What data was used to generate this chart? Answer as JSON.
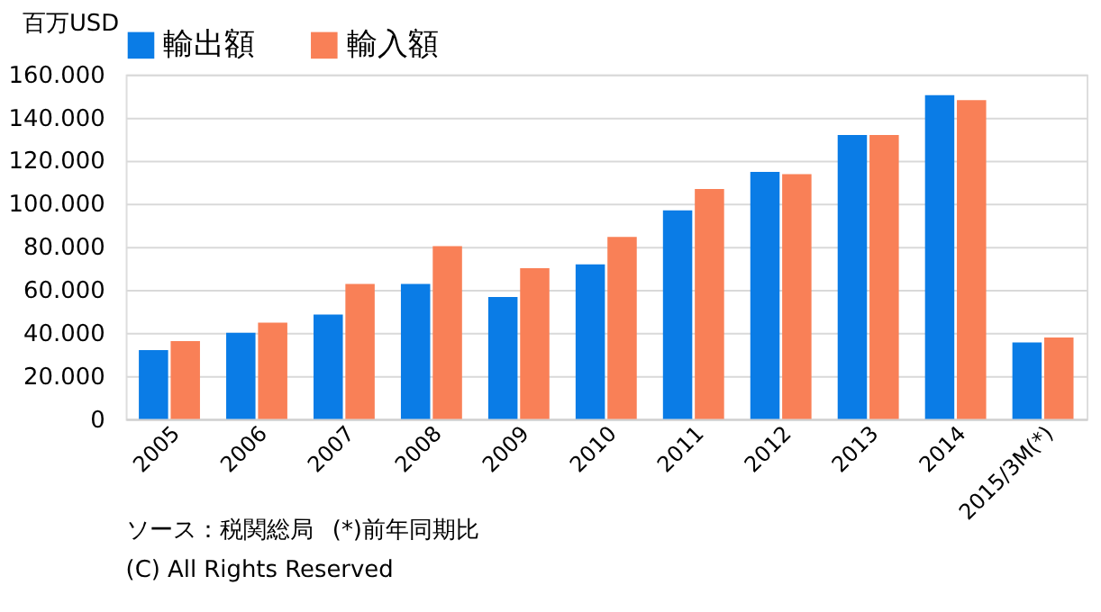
{
  "chart_data": {
    "type": "bar",
    "ylabel": "百万USD",
    "categories": [
      "2005",
      "2006",
      "2007",
      "2008",
      "2009",
      "2010",
      "2011",
      "2012",
      "2013",
      "2014",
      "2015/3M(*)"
    ],
    "series": [
      {
        "name": "輸出額",
        "color": "#0a7ce6",
        "values": [
          32000,
          40000,
          48500,
          62700,
          56700,
          71800,
          96900,
          114800,
          131900,
          150400,
          35600
        ]
      },
      {
        "name": "輸入額",
        "color": "#f98057",
        "values": [
          36200,
          44700,
          62700,
          80300,
          70000,
          84600,
          106800,
          113700,
          131900,
          148100,
          37900
        ]
      }
    ],
    "ylim": [
      0,
      160000
    ],
    "yticks": [
      0,
      {
        "value": 20000,
        "label": "20.000"
      },
      {
        "value": 40000,
        "label": "40.000"
      },
      {
        "value": 60000,
        "label": "60.000"
      },
      {
        "value": 80000,
        "label": "80.000"
      },
      {
        "value": 100000,
        "label": "100.000"
      },
      {
        "value": 120000,
        "label": "120.000"
      },
      {
        "value": 140000,
        "label": "140.000"
      },
      {
        "value": 160000,
        "label": "160.000"
      }
    ],
    "grid": "y",
    "legend": "top",
    "annotations": [
      "ソース：税関総局",
      "(*)前年同期比",
      "(C) All Rights Reserved"
    ]
  }
}
